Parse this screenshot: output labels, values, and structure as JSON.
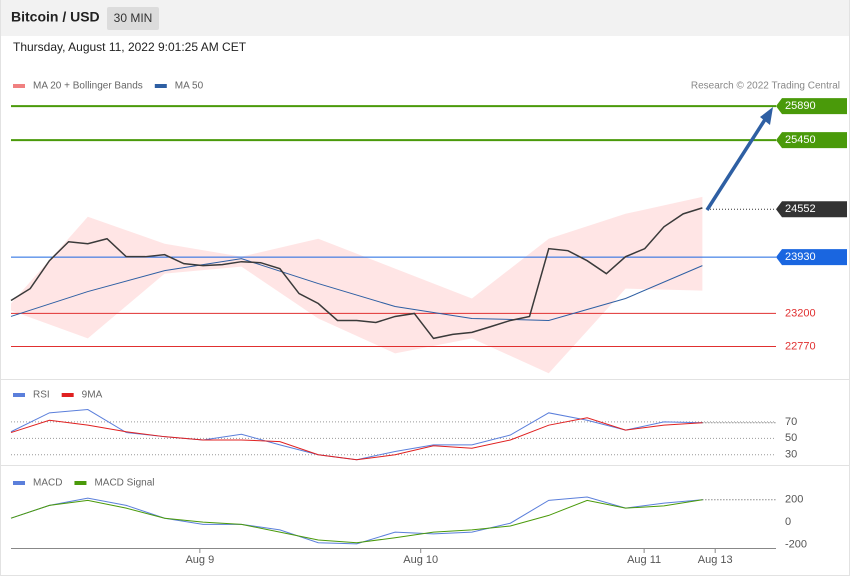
{
  "header": {
    "title": "Bitcoin / USD",
    "interval": "30 MIN",
    "timestamp": "Thursday, August 11, 2022 9:01:25 AM CET"
  },
  "chart_data": [
    {
      "type": "line",
      "attribution": "Research © 2022 Trading Central",
      "xlim": [
        0,
        119.5
      ],
      "ylim": [
        22400,
        26100
      ],
      "price": {
        "color": "#3a3a3a",
        "x": [
          0,
          3,
          6,
          9,
          12,
          15,
          18,
          21,
          24,
          27,
          30,
          33,
          36,
          39,
          42,
          45,
          48,
          51,
          54,
          57,
          60,
          63,
          66,
          69,
          72,
          75,
          78,
          81,
          84,
          87,
          90,
          93,
          96,
          99,
          102,
          105,
          108
        ],
        "values": [
          23367,
          23522,
          23884,
          24130,
          24104,
          24169,
          23936,
          23936,
          23962,
          23846,
          23820,
          23833,
          23871,
          23858,
          23781,
          23457,
          23328,
          23108,
          23108,
          23082,
          23160,
          23199,
          22875,
          22927,
          22953,
          23030,
          23108,
          23160,
          24040,
          24014,
          23884,
          23716,
          23936,
          24040,
          24324,
          24492,
          24570
        ]
      },
      "series": [
        {
          "name": "MA 20 + Bollinger Bands",
          "color": "#f08080",
          "x": [
            0,
            12,
            24,
            36,
            48,
            60,
            72,
            84,
            96,
            108
          ],
          "upper": [
            23328,
            24454,
            24104,
            23936,
            24169,
            23781,
            23393,
            24169,
            24493,
            24713
          ],
          "lower": [
            23237,
            22875,
            23716,
            23807,
            23134,
            22681,
            22875,
            22422,
            23522,
            23496
          ]
        },
        {
          "name": "MA 50",
          "color": "#2e5fa3",
          "x": [
            0,
            12,
            24,
            36,
            48,
            60,
            72,
            84,
            96,
            108
          ],
          "values": [
            23160,
            23483,
            23755,
            23910,
            23587,
            23289,
            23134,
            23108,
            23393,
            23820
          ]
        }
      ],
      "levels": [
        {
          "value": 25890,
          "color": "#4a9a0a",
          "tag": true,
          "line": "solid"
        },
        {
          "value": 25450,
          "color": "#4a9a0a",
          "tag": true,
          "line": "solid"
        },
        {
          "value": 24552,
          "color": "#333333",
          "tag": true,
          "line": "dotted"
        },
        {
          "value": 23930,
          "color": "#1a66e0",
          "tag": true,
          "line": "solid"
        },
        {
          "value": 23200,
          "color": "#e03030",
          "tag": false,
          "line": "solid"
        },
        {
          "value": 22770,
          "color": "#e03030",
          "tag": false,
          "line": "solid"
        }
      ]
    },
    {
      "type": "line",
      "xlim": [
        0,
        119.5
      ],
      "ylim": [
        20,
        118.5
      ],
      "yticks": [
        70,
        50,
        30
      ],
      "series": [
        {
          "name": "RSI",
          "color": "#5b7fdb",
          "x": [
            0,
            6,
            12,
            18,
            24,
            30,
            36,
            42,
            48,
            54,
            60,
            66,
            72,
            78,
            84,
            90,
            96,
            102,
            108
          ],
          "values": [
            58,
            81,
            85,
            57,
            52,
            48,
            55,
            42,
            30,
            24,
            34,
            42,
            42,
            54,
            81,
            72,
            60,
            70,
            69
          ]
        },
        {
          "name": "9MA",
          "color": "#e02020",
          "x": [
            0,
            6,
            12,
            18,
            24,
            30,
            36,
            42,
            48,
            54,
            60,
            66,
            72,
            78,
            84,
            90,
            96,
            102,
            108
          ],
          "values": [
            57,
            72,
            66,
            58,
            52,
            48,
            48,
            46,
            30,
            24,
            30,
            41,
            38,
            48,
            66,
            75,
            60,
            66,
            69
          ]
        }
      ]
    },
    {
      "type": "line",
      "xlim": [
        0,
        119.5
      ],
      "ylim": [
        -250,
        467
      ],
      "yticks": [
        200,
        0,
        -200
      ],
      "xticks": [
        {
          "value": 29.5,
          "label": "Aug 9"
        },
        {
          "value": 64,
          "label": "Aug 10"
        },
        {
          "value": 98.9,
          "label": "Aug 11"
        },
        {
          "value": 110,
          "label": "Aug 13"
        }
      ],
      "series": [
        {
          "name": "MACD",
          "color": "#5b7fdb",
          "x": [
            0,
            6,
            12,
            18,
            24,
            30,
            36,
            42,
            48,
            54,
            60,
            66,
            72,
            78,
            84,
            90,
            96,
            102,
            108
          ],
          "values": [
            35,
            150,
            215,
            150,
            35,
            -20,
            -20,
            -70,
            -185,
            -195,
            -90,
            -105,
            -90,
            -10,
            195,
            225,
            125,
            170,
            200
          ]
        },
        {
          "name": "MACD Signal",
          "color": "#4a9a0a",
          "x": [
            0,
            6,
            12,
            18,
            24,
            30,
            36,
            42,
            48,
            54,
            60,
            66,
            72,
            78,
            84,
            90,
            96,
            102,
            108
          ],
          "values": [
            35,
            150,
            195,
            125,
            35,
            0,
            -20,
            -90,
            -160,
            -185,
            -140,
            -90,
            -70,
            -35,
            60,
            195,
            125,
            145,
            200
          ]
        }
      ]
    }
  ]
}
